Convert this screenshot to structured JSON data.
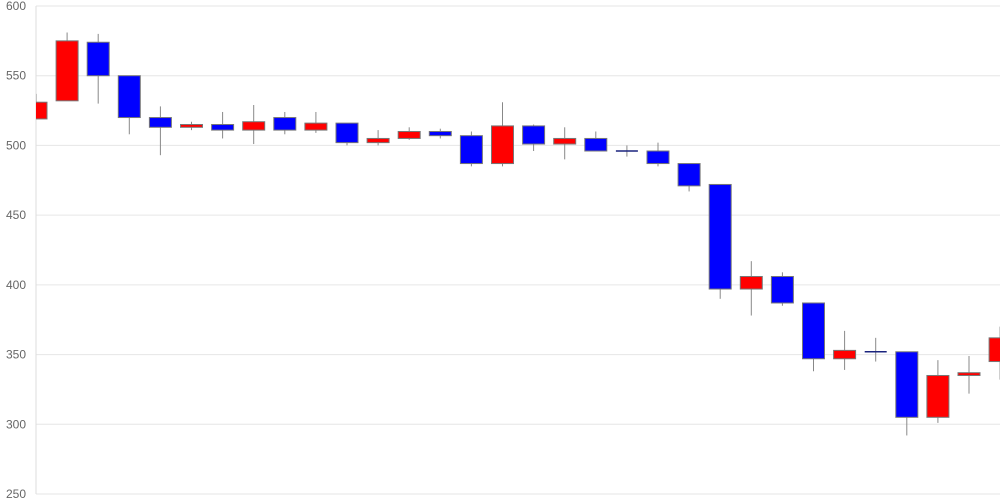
{
  "chart_data": {
    "type": "candlestick",
    "title": "",
    "xlabel": "",
    "ylabel": "",
    "ylim": [
      250,
      600
    ],
    "yticks": [
      "600",
      "550",
      "500",
      "450",
      "400",
      "350",
      "300",
      "250"
    ],
    "grid": true,
    "colors": {
      "up": "#ff0000",
      "down": "#0000ff",
      "flat": "#1a237e",
      "wick": "#888888",
      "border": "#777777",
      "grid": "#e6e6e6"
    },
    "candles": [
      {
        "o": 519,
        "h": 537,
        "l": 519,
        "c": 531
      },
      {
        "o": 532,
        "h": 581,
        "l": 532,
        "c": 575
      },
      {
        "o": 574,
        "h": 580,
        "l": 530,
        "c": 550
      },
      {
        "o": 550,
        "h": 550,
        "l": 508,
        "c": 520
      },
      {
        "o": 520,
        "h": 528,
        "l": 493,
        "c": 513
      },
      {
        "o": 513,
        "h": 517,
        "l": 511,
        "c": 515
      },
      {
        "o": 515,
        "h": 524,
        "l": 505,
        "c": 511
      },
      {
        "o": 511,
        "h": 529,
        "l": 501,
        "c": 517
      },
      {
        "o": 520,
        "h": 524,
        "l": 508,
        "c": 511
      },
      {
        "o": 511,
        "h": 524,
        "l": 509,
        "c": 516
      },
      {
        "o": 516,
        "h": 516,
        "l": 500,
        "c": 502
      },
      {
        "o": 502,
        "h": 511,
        "l": 500,
        "c": 505
      },
      {
        "o": 505,
        "h": 513,
        "l": 504,
        "c": 510
      },
      {
        "o": 510,
        "h": 512,
        "l": 505,
        "c": 507
      },
      {
        "o": 507,
        "h": 510,
        "l": 485,
        "c": 487
      },
      {
        "o": 487,
        "h": 531,
        "l": 485,
        "c": 514
      },
      {
        "o": 514,
        "h": 515,
        "l": 496,
        "c": 501
      },
      {
        "o": 501,
        "h": 513,
        "l": 490,
        "c": 505
      },
      {
        "o": 505,
        "h": 510,
        "l": 496,
        "c": 496
      },
      {
        "o": 496,
        "h": 500,
        "l": 492,
        "c": 496
      },
      {
        "o": 496,
        "h": 502,
        "l": 485,
        "c": 487
      },
      {
        "o": 487,
        "h": 487,
        "l": 467,
        "c": 471
      },
      {
        "o": 472,
        "h": 472,
        "l": 390,
        "c": 397
      },
      {
        "o": 397,
        "h": 417,
        "l": 378,
        "c": 406
      },
      {
        "o": 406,
        "h": 409,
        "l": 385,
        "c": 387
      },
      {
        "o": 387,
        "h": 387,
        "l": 338,
        "c": 347
      },
      {
        "o": 347,
        "h": 367,
        "l": 339,
        "c": 353
      },
      {
        "o": 352,
        "h": 362,
        "l": 345,
        "c": 352
      },
      {
        "o": 352,
        "h": 352,
        "l": 292,
        "c": 305
      },
      {
        "o": 305,
        "h": 346,
        "l": 301,
        "c": 335
      },
      {
        "o": 335,
        "h": 349,
        "l": 322,
        "c": 337
      },
      {
        "o": 345,
        "h": 370,
        "l": 332,
        "c": 362
      }
    ]
  }
}
